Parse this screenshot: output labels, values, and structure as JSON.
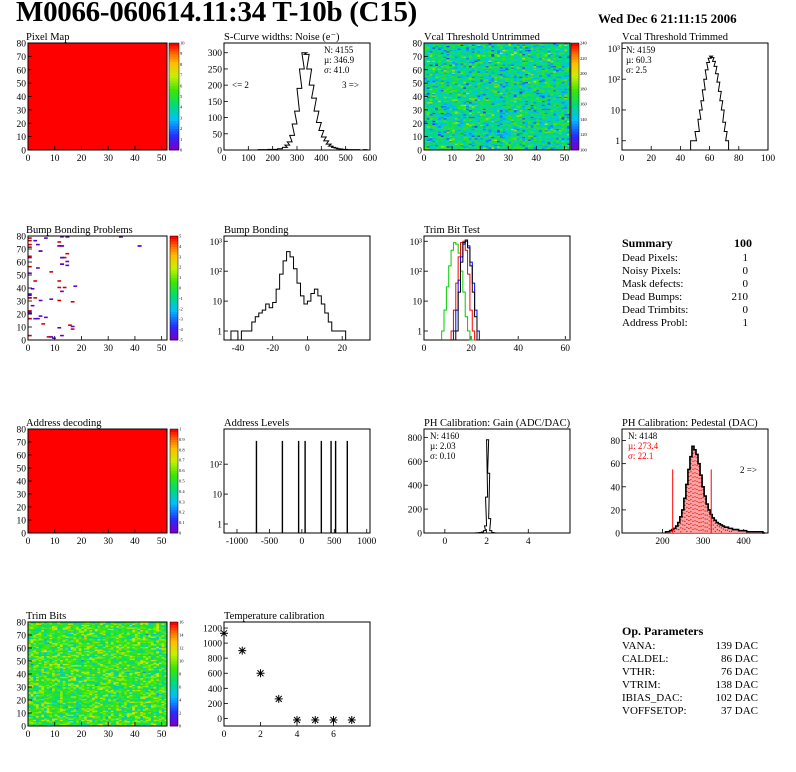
{
  "header": {
    "title": "M0066-060614.11:34 T-10b (C15)",
    "date": "Wed Dec  6 21:11:15 2006"
  },
  "colors": {
    "red": "#ff0000",
    "hist_line": "#000000",
    "trim_green": "#00cc00",
    "trim_red": "#ff0000",
    "trim_blue": "#0000ff",
    "pedestal_fill": "#ff9999",
    "pedestal_stats": "#ff0000"
  },
  "summary": {
    "title": "Summary",
    "total": "100",
    "rows": [
      {
        "label": "Dead Pixels:",
        "value": "1"
      },
      {
        "label": "Noisy Pixels:",
        "value": "0"
      },
      {
        "label": "Mask defects:",
        "value": "0"
      },
      {
        "label": "Dead Bumps:",
        "value": "210"
      },
      {
        "label": "Dead Trimbits:",
        "value": "0"
      },
      {
        "label": "Address Probl:",
        "value": "1"
      }
    ]
  },
  "op_parameters": {
    "title": "Op. Parameters",
    "rows": [
      {
        "label": "VANA:",
        "value": "139 DAC"
      },
      {
        "label": "CALDEL:",
        "value": "86 DAC"
      },
      {
        "label": "VTHR:",
        "value": "76 DAC"
      },
      {
        "label": "VTRIM:",
        "value": "138 DAC"
      },
      {
        "label": "IBIAS_DAC:",
        "value": "102 DAC"
      },
      {
        "label": "VOFFSETOP:",
        "value": "37 DAC"
      }
    ]
  },
  "chart_data": [
    {
      "id": "pixel-map",
      "type": "heatmap",
      "title": "Pixel Map",
      "xlim": [
        0,
        52
      ],
      "ylim": [
        0,
        80
      ],
      "xticks": [
        "0",
        "10",
        "20",
        "30",
        "40",
        "50"
      ],
      "yticks": [
        "0",
        "10",
        "20",
        "30",
        "40",
        "50",
        "60",
        "70",
        "80"
      ],
      "palette_ticks": [
        "0",
        "1",
        "2",
        "3",
        "4",
        "5",
        "6",
        "7",
        "8",
        "9",
        "10"
      ],
      "fill": "uniform",
      "value": 10
    },
    {
      "id": "scurve-noise",
      "type": "line",
      "title": "S-Curve widths: Noise (e⁻)",
      "xlim": [
        0,
        600
      ],
      "ylim": [
        0,
        330
      ],
      "xticks": [
        "0",
        "100",
        "200",
        "300",
        "400",
        "500",
        "600"
      ],
      "yticks": [
        "0",
        "50",
        "100",
        "150",
        "200",
        "250",
        "300"
      ],
      "stats": [
        "N: 4155",
        "µ: 346.9",
        "σ: 41.0"
      ],
      "annotations": [
        "<= 2",
        "3 =>"
      ],
      "x": [
        150,
        170,
        190,
        210,
        230,
        250,
        260,
        270,
        280,
        290,
        300,
        310,
        320,
        330,
        340,
        350,
        360,
        370,
        380,
        390,
        400,
        410,
        420,
        430,
        440,
        450,
        460,
        470,
        480,
        490,
        500,
        510,
        520,
        530,
        540,
        550,
        560,
        570,
        580,
        590
      ],
      "values": [
        1,
        1,
        2,
        2,
        4,
        8,
        15,
        25,
        45,
        80,
        120,
        190,
        250,
        300,
        295,
        250,
        200,
        160,
        120,
        85,
        60,
        40,
        28,
        18,
        12,
        8,
        6,
        4,
        3,
        2,
        2,
        1,
        1,
        1,
        0,
        1,
        0,
        0,
        1,
        0
      ]
    },
    {
      "id": "vcal-untrimmed",
      "type": "heatmap",
      "title": "Vcal Threshold Untrimmed",
      "xlim": [
        0,
        52
      ],
      "ylim": [
        0,
        80
      ],
      "xticks": [
        "0",
        "10",
        "20",
        "30",
        "40",
        "50"
      ],
      "yticks": [
        "0",
        "10",
        "20",
        "30",
        "40",
        "50",
        "60",
        "70",
        "80"
      ],
      "palette_ticks": [
        "100",
        "120",
        "140",
        "160",
        "180",
        "200",
        "220",
        "240"
      ],
      "fill": "noise",
      "mean": 160,
      "range": [
        100,
        250
      ]
    },
    {
      "id": "vcal-trimmed",
      "type": "line",
      "title": "Vcal Threshold Trimmed",
      "log_y": true,
      "xlim": [
        0,
        100
      ],
      "ylim": [
        0.5,
        1500
      ],
      "xticks": [
        "0",
        "20",
        "40",
        "60",
        "80",
        "100"
      ],
      "yticks": [
        "1",
        "10",
        "10²",
        "10³"
      ],
      "stats": [
        "N: 4159",
        "µ: 60.3",
        "σ:  2.5"
      ],
      "x": [
        48,
        50,
        51,
        52,
        53,
        54,
        55,
        56,
        57,
        58,
        59,
        60,
        61,
        62,
        63,
        64,
        65,
        66,
        67,
        68,
        69,
        70,
        71,
        72
      ],
      "values": [
        1,
        1,
        2,
        2,
        5,
        10,
        20,
        45,
        100,
        200,
        350,
        480,
        560,
        500,
        380,
        260,
        150,
        80,
        40,
        20,
        10,
        4,
        2,
        1
      ]
    },
    {
      "id": "bump-problems",
      "type": "heatmap",
      "title": "Bump Bonding Problems",
      "xlim": [
        0,
        52
      ],
      "ylim": [
        0,
        80
      ],
      "xticks": [
        "0",
        "10",
        "20",
        "30",
        "40",
        "50"
      ],
      "yticks": [
        "0",
        "10",
        "20",
        "30",
        "40",
        "50",
        "60",
        "70",
        "80"
      ],
      "palette_ticks": [
        "-5",
        "-4",
        "-3",
        "-2",
        "-1",
        "0",
        "1",
        "2",
        "3",
        "4",
        "5"
      ],
      "fill": "sparse"
    },
    {
      "id": "bump-bonding",
      "type": "line",
      "title": "Bump Bonding",
      "log_y": true,
      "xlim": [
        -48,
        36
      ],
      "ylim": [
        0.5,
        1500
      ],
      "xticks": [
        "-40",
        "-20",
        "0",
        "20"
      ],
      "yticks": [
        "1",
        "10",
        "10²",
        "10³"
      ],
      "x": [
        -43,
        -41,
        -39,
        -37,
        -35,
        -33,
        -31,
        -29,
        -27,
        -25,
        -23,
        -21,
        -19,
        -17,
        -15,
        -13,
        -11,
        -9,
        -7,
        -5,
        -3,
        -1,
        1,
        3,
        5,
        7,
        9,
        11,
        13,
        15,
        17,
        19,
        21,
        23
      ],
      "values": [
        1,
        1,
        0,
        1,
        1,
        1,
        2,
        3,
        4,
        5,
        8,
        6,
        9,
        25,
        80,
        220,
        450,
        300,
        120,
        40,
        15,
        8,
        10,
        18,
        25,
        15,
        8,
        4,
        2,
        1,
        1,
        1,
        1,
        0
      ]
    },
    {
      "id": "trim-bit-test",
      "type": "line",
      "title": "Trim Bit Test",
      "log_y": true,
      "xlim": [
        0,
        62
      ],
      "ylim": [
        0.5,
        1500
      ],
      "xticks": [
        "0",
        "20",
        "40",
        "60"
      ],
      "yticks": [
        "1",
        "10",
        "10²",
        "10³"
      ],
      "x": [
        8,
        9,
        10,
        11,
        12,
        13,
        14,
        15,
        16,
        17,
        18,
        19,
        20,
        21,
        22,
        23,
        24,
        25,
        26
      ],
      "series": [
        {
          "name": "",
          "color": "#00cc00",
          "values": [
            1,
            5,
            30,
            150,
            500,
            900,
            800,
            400,
            100,
            20,
            3,
            1,
            0,
            0,
            0,
            0,
            0,
            0,
            0
          ]
        },
        {
          "name": "",
          "color": "#ff0000",
          "values": [
            0,
            0,
            0,
            0,
            1,
            5,
            40,
            300,
            900,
            1000,
            500,
            80,
            5,
            1,
            0,
            0,
            0,
            0,
            0
          ]
        },
        {
          "name": "",
          "color": "#0000ff",
          "values": [
            0,
            0,
            0,
            0,
            0,
            1,
            5,
            50,
            300,
            800,
            1000,
            700,
            200,
            40,
            5,
            1,
            0,
            0,
            0
          ]
        },
        {
          "name": "",
          "color": "#000000",
          "values": [
            0,
            0,
            0,
            0,
            0,
            0,
            1,
            20,
            200,
            900,
            1100,
            600,
            150,
            20,
            3,
            0,
            0,
            0,
            0
          ]
        }
      ]
    },
    {
      "id": "address-decoding",
      "type": "heatmap",
      "title": "Address decoding",
      "xlim": [
        0,
        52
      ],
      "ylim": [
        0,
        80
      ],
      "xticks": [
        "0",
        "10",
        "20",
        "30",
        "40",
        "50"
      ],
      "yticks": [
        "0",
        "10",
        "20",
        "30",
        "40",
        "50",
        "60",
        "70",
        "80"
      ],
      "palette_ticks": [
        "0",
        "0.1",
        "0.2",
        "0.3",
        "0.4",
        "0.5",
        "0.6",
        "0.7",
        "0.8",
        "0.9",
        "1"
      ],
      "fill": "uniform",
      "value": 1
    },
    {
      "id": "address-levels",
      "type": "line",
      "title": "Address Levels",
      "log_y": true,
      "xlim": [
        -1200,
        1050
      ],
      "ylim": [
        0.5,
        1500
      ],
      "xticks": [
        "-1000",
        "-500",
        "0",
        "500",
        "1000"
      ],
      "yticks": [
        "1",
        "10",
        "10²"
      ],
      "spikes": [
        -700,
        -300,
        -50,
        50,
        300,
        450,
        520,
        700
      ],
      "spike_height": 600
    },
    {
      "id": "ph-gain",
      "type": "line",
      "title": "PH Calibration: Gain (ADC/DAC)",
      "xlim": [
        -1,
        6
      ],
      "ylim": [
        0,
        870
      ],
      "xticks": [
        "0",
        "2",
        "4"
      ],
      "yticks": [
        "0",
        "200",
        "400",
        "600",
        "800"
      ],
      "stats": [
        "N: 4160",
        "µ: 2.03",
        "σ: 0.10"
      ],
      "x": [
        1.5,
        1.6,
        1.7,
        1.8,
        1.9,
        1.95,
        2.0,
        2.05,
        2.1,
        2.15,
        2.2,
        2.3,
        2.4
      ],
      "values": [
        1,
        2,
        4,
        8,
        20,
        60,
        300,
        780,
        500,
        120,
        20,
        4,
        1
      ]
    },
    {
      "id": "ph-pedestal",
      "type": "area",
      "title": "PH Calibration: Pedestal (DAC)",
      "xlim": [
        100,
        460
      ],
      "ylim": [
        0,
        90
      ],
      "xticks": [
        "200",
        "300",
        "400"
      ],
      "yticks": [
        "0",
        "20",
        "40",
        "60",
        "80"
      ],
      "stats": [
        "N: 4148",
        "µ: 273.4",
        "σ: 22.1"
      ],
      "annotations": [
        "2 =>"
      ],
      "cut_lines": [
        225,
        320
      ],
      "x": [
        210,
        215,
        220,
        225,
        230,
        235,
        240,
        245,
        250,
        255,
        260,
        265,
        270,
        275,
        280,
        285,
        290,
        295,
        300,
        305,
        310,
        315,
        320,
        325,
        330,
        335,
        340,
        345,
        350,
        355,
        360,
        365,
        370,
        375,
        380,
        385,
        390,
        395,
        400,
        405,
        410,
        415,
        420,
        425,
        430,
        435,
        440,
        445,
        450
      ],
      "values": [
        1,
        1,
        2,
        3,
        4,
        6,
        9,
        14,
        20,
        30,
        42,
        55,
        66,
        75,
        72,
        68,
        60,
        50,
        40,
        32,
        25,
        20,
        16,
        13,
        11,
        9,
        8,
        7,
        6,
        5,
        5,
        4,
        4,
        3,
        3,
        3,
        2,
        2,
        2,
        2,
        1,
        1,
        1,
        1,
        1,
        1,
        1,
        1,
        0
      ]
    },
    {
      "id": "trim-bits",
      "type": "heatmap",
      "title": "Trim Bits",
      "xlim": [
        0,
        52
      ],
      "ylim": [
        0,
        80
      ],
      "xticks": [
        "0",
        "10",
        "20",
        "30",
        "40",
        "50"
      ],
      "yticks": [
        "0",
        "10",
        "20",
        "30",
        "40",
        "50",
        "60",
        "70",
        "80"
      ],
      "palette_ticks": [
        "0",
        "2",
        "4",
        "6",
        "8",
        "10",
        "12",
        "14",
        "16"
      ],
      "fill": "noise",
      "mean": 8.5,
      "range": [
        0,
        16
      ]
    },
    {
      "id": "temp-calibration",
      "type": "scatter",
      "title": "Temperature calibration",
      "xlim": [
        0,
        8
      ],
      "ylim": [
        -100,
        1280
      ],
      "xticks": [
        "0",
        "2",
        "4",
        "6"
      ],
      "yticks": [
        "0",
        "200",
        "400",
        "600",
        "800",
        "1000",
        "1200"
      ],
      "x": [
        0,
        1,
        2,
        3,
        4,
        5,
        6,
        7
      ],
      "values": [
        1130,
        900,
        600,
        260,
        -20,
        -20,
        -20,
        -20
      ]
    }
  ]
}
